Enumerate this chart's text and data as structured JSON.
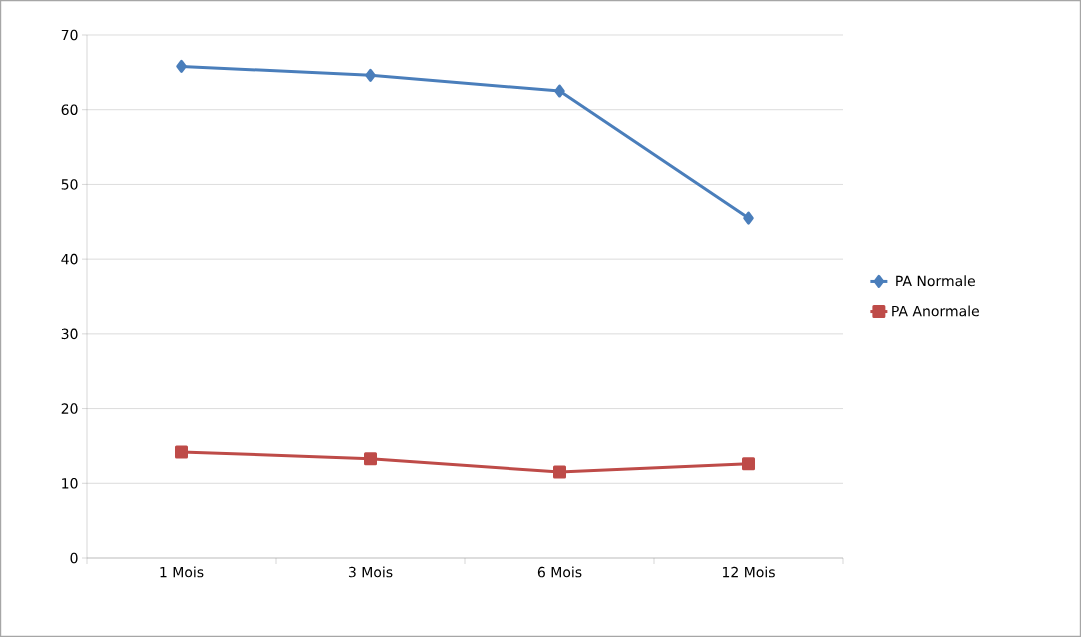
{
  "chart_data": {
    "type": "line",
    "categories": [
      "1 Mois",
      "3 Mois",
      "6 Mois",
      "12 Mois"
    ],
    "series": [
      {
        "name": "PA Normale",
        "color": "#4a7ebb",
        "marker": "diamond",
        "values": [
          65.8,
          64.6,
          62.5,
          45.5
        ]
      },
      {
        "name": "PA Anormale",
        "color": "#be4b48",
        "marker": "square",
        "values": [
          14.2,
          13.3,
          11.5,
          12.6
        ]
      }
    ],
    "ylim": [
      0,
      70
    ],
    "yticks": [
      0,
      10,
      20,
      30,
      40,
      50,
      60,
      70
    ],
    "grid": "y",
    "legend": "right",
    "line_style": "solid"
  }
}
